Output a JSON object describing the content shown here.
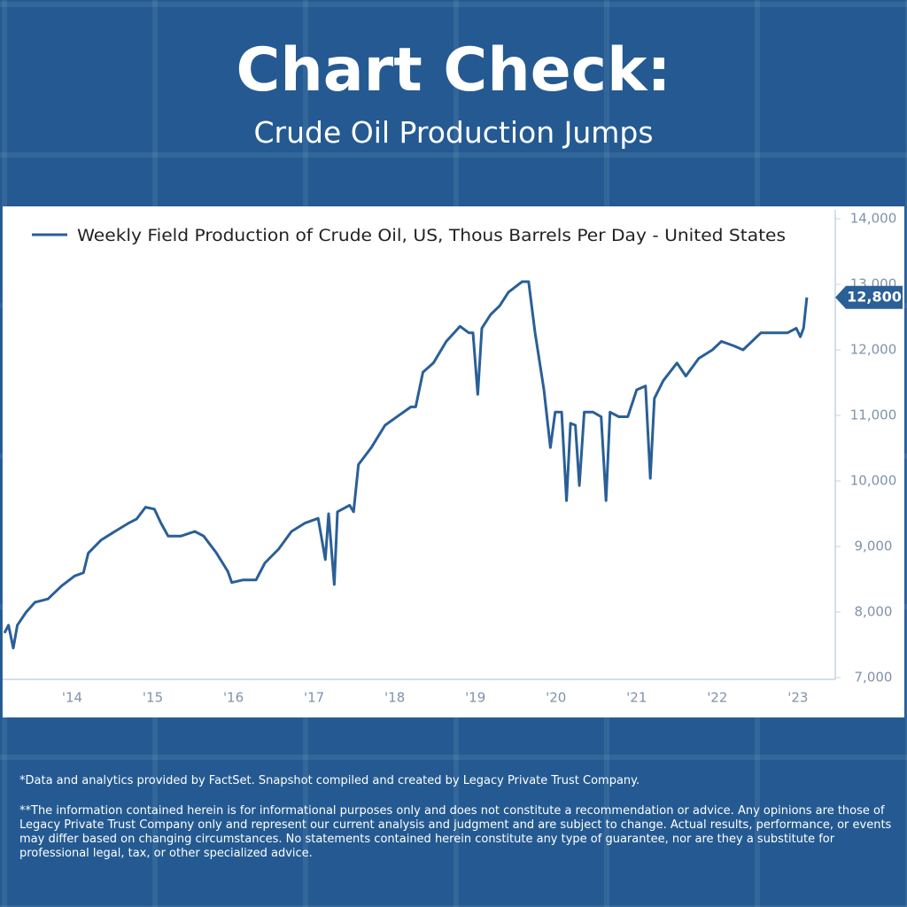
{
  "header": {
    "title": "Chart Check:",
    "subtitle": "Crude Oil Production Jumps"
  },
  "chart_data": {
    "type": "line",
    "x": [
      2013.66,
      2013.71,
      2013.77,
      2013.82,
      2013.93,
      2014.04,
      2014.2,
      2014.37,
      2014.53,
      2014.64,
      2014.7,
      2014.86,
      2015.03,
      2015.19,
      2015.3,
      2015.41,
      2015.52,
      2015.6,
      2015.69,
      2015.85,
      2016.02,
      2016.13,
      2016.29,
      2016.43,
      2016.48,
      2016.62,
      2016.78,
      2016.89,
      2017.06,
      2017.22,
      2017.39,
      2017.55,
      2017.64,
      2017.68,
      2017.75,
      2017.79,
      2017.94,
      2017.99,
      2018.05,
      2018.21,
      2018.38,
      2018.54,
      2018.7,
      2018.76,
      2018.85,
      2018.98,
      2019.14,
      2019.31,
      2019.42,
      2019.47,
      2019.53,
      2019.58,
      2019.69,
      2019.8,
      2019.91,
      2020.08,
      2020.16,
      2020.24,
      2020.35,
      2020.43,
      2020.49,
      2020.57,
      2020.63,
      2020.68,
      2020.74,
      2020.79,
      2020.85,
      2020.96,
      2021.06,
      2021.12,
      2021.17,
      2021.28,
      2021.39,
      2021.5,
      2021.61,
      2021.67,
      2021.72,
      2021.83,
      2022.0,
      2022.11,
      2022.27,
      2022.44,
      2022.55,
      2022.71,
      2022.82,
      2022.93,
      2023.04,
      2023.21,
      2023.37,
      2023.48,
      2023.53,
      2023.57,
      2023.61
    ],
    "series": [
      {
        "name": "Weekly Field Production of Crude Oil, US, Thous Barrels Per Day - United States",
        "color": "#2a5f97",
        "values": [
          7680,
          7800,
          7450,
          7800,
          8000,
          8150,
          8200,
          8400,
          8550,
          8600,
          8900,
          9100,
          9230,
          9350,
          9420,
          9600,
          9570,
          9360,
          9160,
          9160,
          9230,
          9160,
          8900,
          8620,
          8450,
          8490,
          8490,
          8750,
          8960,
          9230,
          9360,
          9430,
          8800,
          9500,
          8420,
          9530,
          9630,
          9530,
          10250,
          10510,
          10850,
          10990,
          11130,
          11130,
          11660,
          11800,
          12130,
          12360,
          12260,
          12260,
          11320,
          12330,
          12540,
          12670,
          12880,
          13040,
          13040,
          12260,
          11390,
          10510,
          11050,
          11050,
          9700,
          10880,
          10850,
          9930,
          11050,
          11050,
          10980,
          9700,
          11050,
          10980,
          10980,
          11390,
          11450,
          10040,
          11260,
          11530,
          11800,
          11600,
          11870,
          12000,
          12130,
          12060,
          12000,
          12130,
          12260,
          12260,
          12260,
          12330,
          12200,
          12330,
          12800
        ],
        "value_labels": [
          null,
          null,
          null,
          null,
          null,
          null,
          null,
          null,
          null,
          null,
          null,
          null,
          null,
          null,
          null,
          null,
          null,
          null,
          null,
          null,
          null,
          null,
          null,
          null,
          null,
          null,
          null,
          null,
          null,
          null,
          null,
          null,
          null,
          null,
          null,
          null,
          null,
          null,
          null,
          null,
          null,
          null,
          null,
          null,
          null,
          null,
          null,
          null,
          null,
          null,
          null,
          null,
          null,
          null,
          null,
          null,
          null,
          null,
          null,
          null,
          null,
          null,
          null,
          null,
          null,
          null,
          null,
          null,
          null,
          null,
          null,
          null,
          null,
          null,
          null,
          null,
          null,
          null,
          null,
          null,
          null,
          null,
          null,
          null,
          null,
          null,
          null,
          null,
          null,
          null,
          null,
          null,
          "12,800"
        ]
      }
    ],
    "xlim": [
      2013.66,
      2023.93
    ],
    "xticks": [
      {
        "value": 2014.5,
        "label": "'14"
      },
      {
        "value": 2015.5,
        "label": "'15"
      },
      {
        "value": 2016.5,
        "label": "'16"
      },
      {
        "value": 2017.5,
        "label": "'17"
      },
      {
        "value": 2018.5,
        "label": "'18"
      },
      {
        "value": 2019.5,
        "label": "'19"
      },
      {
        "value": 2020.5,
        "label": "'20"
      },
      {
        "value": 2021.5,
        "label": "'21"
      },
      {
        "value": 2022.5,
        "label": "'22"
      },
      {
        "value": 2023.5,
        "label": "'23"
      }
    ],
    "ylim": [
      7000,
      14000
    ],
    "yticks": [
      {
        "value": 7000,
        "label": "7,000"
      },
      {
        "value": 8000,
        "label": "8,000"
      },
      {
        "value": 9000,
        "label": "9,000"
      },
      {
        "value": 10000,
        "label": "10,000"
      },
      {
        "value": 11000,
        "label": "11,000"
      },
      {
        "value": 12000,
        "label": "12,000"
      },
      {
        "value": 13000,
        "label": "13,000"
      },
      {
        "value": 14000,
        "label": "14,000"
      }
    ],
    "legend": "top-left"
  },
  "footer": {
    "notes": [
      "*Data and analytics provided by FactSet. Snapshot compiled and created by Legacy Private Trust Company.",
      "**The information contained herein is for informational purposes only and does not constitute a recommendation or advice. Any opinions are those of Legacy Private Trust Company only and represent our current analysis and judgment and are subject to change. Actual results, performance, or events may differ based on changing circumstances. No statements contained herein constitute any type of guarantee, nor are they a substitute for professional legal, tax, or other specialized advice."
    ]
  }
}
